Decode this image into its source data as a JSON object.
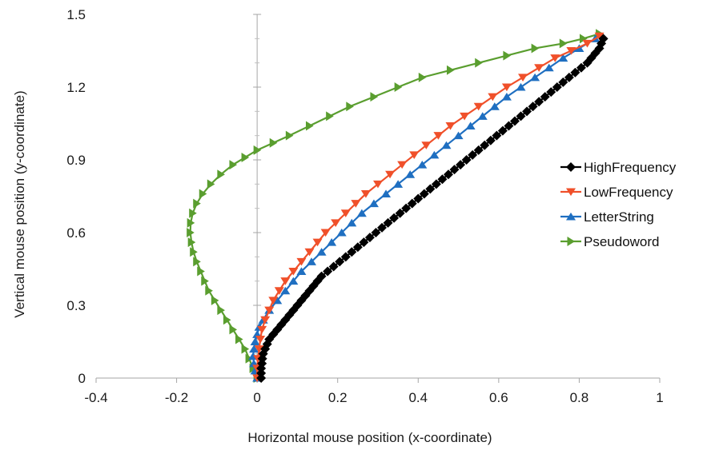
{
  "chart_data": {
    "type": "scatter",
    "xlabel": "Horizontal mouse position (x-coordinate)",
    "ylabel": "Vertical mouse position (y-coordinate)",
    "xlim": [
      -0.4,
      1.0
    ],
    "ylim": [
      0,
      1.5
    ],
    "xticks": [
      "-0.4",
      "-0.2",
      "0",
      "0.2",
      "0.4",
      "0.6",
      "0.8",
      "1"
    ],
    "yticks": [
      "0",
      "0.3",
      "0.6",
      "0.9",
      "1.2",
      "1.5"
    ],
    "grid": false,
    "legend_position": "right",
    "series": [
      {
        "name": "HighFrequency",
        "color": "#000000",
        "marker": "diamond",
        "points": [
          [
            0.01,
            0.0
          ],
          [
            0.01,
            0.02
          ],
          [
            0.01,
            0.04
          ],
          [
            0.012,
            0.06
          ],
          [
            0.013,
            0.08
          ],
          [
            0.015,
            0.1
          ],
          [
            0.02,
            0.12
          ],
          [
            0.025,
            0.14
          ],
          [
            0.03,
            0.16
          ],
          [
            0.04,
            0.18
          ],
          [
            0.05,
            0.2
          ],
          [
            0.06,
            0.22
          ],
          [
            0.07,
            0.24
          ],
          [
            0.08,
            0.26
          ],
          [
            0.09,
            0.28
          ],
          [
            0.1,
            0.3
          ],
          [
            0.11,
            0.32
          ],
          [
            0.12,
            0.34
          ],
          [
            0.13,
            0.36
          ],
          [
            0.14,
            0.38
          ],
          [
            0.15,
            0.4
          ],
          [
            0.16,
            0.42
          ],
          [
            0.175,
            0.44
          ],
          [
            0.19,
            0.46
          ],
          [
            0.205,
            0.48
          ],
          [
            0.22,
            0.5
          ],
          [
            0.235,
            0.52
          ],
          [
            0.25,
            0.54
          ],
          [
            0.265,
            0.56
          ],
          [
            0.28,
            0.58
          ],
          [
            0.295,
            0.6
          ],
          [
            0.31,
            0.62
          ],
          [
            0.325,
            0.64
          ],
          [
            0.34,
            0.66
          ],
          [
            0.355,
            0.68
          ],
          [
            0.37,
            0.7
          ],
          [
            0.385,
            0.72
          ],
          [
            0.4,
            0.74
          ],
          [
            0.415,
            0.76
          ],
          [
            0.43,
            0.78
          ],
          [
            0.445,
            0.8
          ],
          [
            0.46,
            0.82
          ],
          [
            0.475,
            0.84
          ],
          [
            0.49,
            0.86
          ],
          [
            0.505,
            0.88
          ],
          [
            0.52,
            0.9
          ],
          [
            0.535,
            0.92
          ],
          [
            0.55,
            0.94
          ],
          [
            0.565,
            0.96
          ],
          [
            0.58,
            0.98
          ],
          [
            0.595,
            1.0
          ],
          [
            0.61,
            1.02
          ],
          [
            0.625,
            1.04
          ],
          [
            0.64,
            1.06
          ],
          [
            0.655,
            1.08
          ],
          [
            0.67,
            1.1
          ],
          [
            0.685,
            1.12
          ],
          [
            0.7,
            1.14
          ],
          [
            0.715,
            1.16
          ],
          [
            0.73,
            1.18
          ],
          [
            0.745,
            1.2
          ],
          [
            0.76,
            1.22
          ],
          [
            0.775,
            1.24
          ],
          [
            0.79,
            1.26
          ],
          [
            0.805,
            1.28
          ],
          [
            0.82,
            1.3
          ],
          [
            0.83,
            1.32
          ],
          [
            0.84,
            1.34
          ],
          [
            0.85,
            1.36
          ],
          [
            0.855,
            1.38
          ],
          [
            0.86,
            1.4
          ]
        ]
      },
      {
        "name": "LowFrequency",
        "color": "#f0502a",
        "marker": "triangle-down",
        "points": [
          [
            0.0,
            0.0
          ],
          [
            0.0,
            0.04
          ],
          [
            0.002,
            0.08
          ],
          [
            0.005,
            0.12
          ],
          [
            0.008,
            0.16
          ],
          [
            0.012,
            0.2
          ],
          [
            0.02,
            0.24
          ],
          [
            0.03,
            0.28
          ],
          [
            0.04,
            0.32
          ],
          [
            0.055,
            0.36
          ],
          [
            0.07,
            0.4
          ],
          [
            0.09,
            0.44
          ],
          [
            0.11,
            0.48
          ],
          [
            0.13,
            0.52
          ],
          [
            0.15,
            0.56
          ],
          [
            0.17,
            0.6
          ],
          [
            0.195,
            0.64
          ],
          [
            0.22,
            0.68
          ],
          [
            0.245,
            0.72
          ],
          [
            0.27,
            0.76
          ],
          [
            0.3,
            0.8
          ],
          [
            0.33,
            0.84
          ],
          [
            0.36,
            0.88
          ],
          [
            0.39,
            0.92
          ],
          [
            0.42,
            0.96
          ],
          [
            0.45,
            1.0
          ],
          [
            0.48,
            1.04
          ],
          [
            0.515,
            1.08
          ],
          [
            0.55,
            1.12
          ],
          [
            0.585,
            1.16
          ],
          [
            0.62,
            1.2
          ],
          [
            0.66,
            1.24
          ],
          [
            0.7,
            1.28
          ],
          [
            0.74,
            1.32
          ],
          [
            0.78,
            1.35
          ],
          [
            0.82,
            1.38
          ],
          [
            0.85,
            1.41
          ]
        ]
      },
      {
        "name": "LetterString",
        "color": "#1f6fc1",
        "marker": "triangle-up",
        "points": [
          [
            0.0,
            0.0
          ],
          [
            -0.005,
            0.03
          ],
          [
            -0.008,
            0.06
          ],
          [
            -0.01,
            0.09
          ],
          [
            -0.008,
            0.12
          ],
          [
            -0.005,
            0.15
          ],
          [
            0.0,
            0.18
          ],
          [
            0.005,
            0.21
          ],
          [
            0.015,
            0.24
          ],
          [
            0.03,
            0.28
          ],
          [
            0.05,
            0.32
          ],
          [
            0.07,
            0.36
          ],
          [
            0.09,
            0.4
          ],
          [
            0.11,
            0.44
          ],
          [
            0.135,
            0.48
          ],
          [
            0.16,
            0.52
          ],
          [
            0.185,
            0.56
          ],
          [
            0.21,
            0.6
          ],
          [
            0.235,
            0.64
          ],
          [
            0.26,
            0.68
          ],
          [
            0.29,
            0.72
          ],
          [
            0.32,
            0.76
          ],
          [
            0.35,
            0.8
          ],
          [
            0.38,
            0.84
          ],
          [
            0.41,
            0.88
          ],
          [
            0.44,
            0.92
          ],
          [
            0.47,
            0.96
          ],
          [
            0.5,
            1.0
          ],
          [
            0.53,
            1.04
          ],
          [
            0.56,
            1.08
          ],
          [
            0.59,
            1.12
          ],
          [
            0.62,
            1.16
          ],
          [
            0.655,
            1.2
          ],
          [
            0.69,
            1.24
          ],
          [
            0.725,
            1.28
          ],
          [
            0.76,
            1.32
          ],
          [
            0.8,
            1.36
          ],
          [
            0.84,
            1.4
          ]
        ]
      },
      {
        "name": "Pseudoword",
        "color": "#5a9e2f",
        "marker": "triangle-right",
        "points": [
          [
            0.0,
            0.0
          ],
          [
            -0.01,
            0.04
          ],
          [
            -0.02,
            0.08
          ],
          [
            -0.03,
            0.12
          ],
          [
            -0.045,
            0.16
          ],
          [
            -0.06,
            0.2
          ],
          [
            -0.075,
            0.24
          ],
          [
            -0.09,
            0.28
          ],
          [
            -0.105,
            0.32
          ],
          [
            -0.12,
            0.36
          ],
          [
            -0.13,
            0.4
          ],
          [
            -0.14,
            0.44
          ],
          [
            -0.15,
            0.48
          ],
          [
            -0.158,
            0.52
          ],
          [
            -0.163,
            0.56
          ],
          [
            -0.166,
            0.6
          ],
          [
            -0.165,
            0.64
          ],
          [
            -0.16,
            0.68
          ],
          [
            -0.15,
            0.72
          ],
          [
            -0.135,
            0.76
          ],
          [
            -0.115,
            0.8
          ],
          [
            -0.09,
            0.84
          ],
          [
            -0.06,
            0.88
          ],
          [
            -0.03,
            0.91
          ],
          [
            0.0,
            0.94
          ],
          [
            0.04,
            0.97
          ],
          [
            0.08,
            1.0
          ],
          [
            0.13,
            1.04
          ],
          [
            0.18,
            1.08
          ],
          [
            0.23,
            1.12
          ],
          [
            0.29,
            1.16
          ],
          [
            0.35,
            1.2
          ],
          [
            0.41,
            1.24
          ],
          [
            0.48,
            1.27
          ],
          [
            0.55,
            1.3
          ],
          [
            0.62,
            1.33
          ],
          [
            0.69,
            1.36
          ],
          [
            0.76,
            1.38
          ],
          [
            0.81,
            1.4
          ],
          [
            0.85,
            1.42
          ]
        ]
      }
    ]
  }
}
